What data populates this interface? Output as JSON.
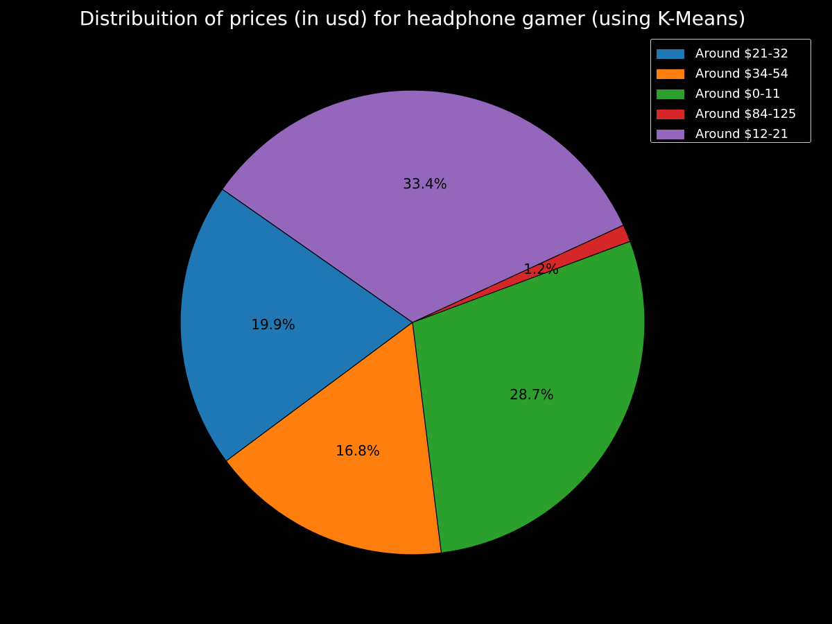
{
  "chart_data": {
    "type": "pie",
    "title": "Distribuition of prices (in usd) for headphone gamer (using K-Means)",
    "slices": [
      {
        "label": "Around $21-32",
        "value": 19.9,
        "value_label": "19.9%",
        "color": "#1f77b4"
      },
      {
        "label": "Around $34-54",
        "value": 16.8,
        "value_label": "16.8%",
        "color": "#ff7f0e"
      },
      {
        "label": "Around $0-11",
        "value": 28.7,
        "value_label": "28.7%",
        "color": "#2ca02c"
      },
      {
        "label": "Around $84-125",
        "value": 1.2,
        "value_label": "1.2%",
        "color": "#d62728"
      },
      {
        "label": "Around $12-21",
        "value": 33.4,
        "value_label": "33.4%",
        "color": "#9467bd"
      }
    ],
    "legend_position": "top-right",
    "background": "#000000",
    "edge_color": "#000000"
  }
}
